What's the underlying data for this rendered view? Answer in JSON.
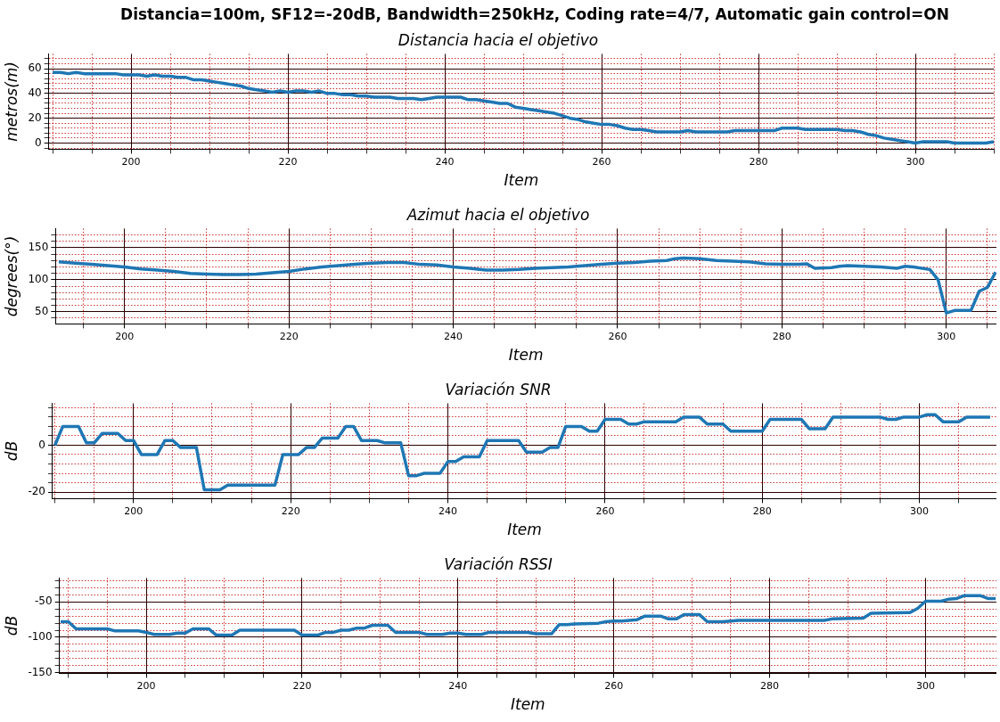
{
  "chart_data": [
    {
      "type": "line",
      "title": "Distancia=100m, SF12=-20dB, Bandwidth=250kHz, Coding rate=4/7, Automatic gain control=ON",
      "subtitle": "Distancia hacia el objetivo",
      "xlabel": "Item",
      "ylabel": "metros(m)",
      "xlim": [
        189.5,
        310
      ],
      "xticks": [
        {
          "value": 190,
          "label": null
        },
        {
          "value": 195,
          "label": null
        },
        200,
        {
          "value": 205,
          "label": null
        },
        {
          "value": 210,
          "label": null
        },
        {
          "value": 215,
          "label": null
        },
        220,
        {
          "value": 225,
          "label": null
        },
        {
          "value": 230,
          "label": null
        },
        {
          "value": 235,
          "label": null
        },
        240,
        {
          "value": 245,
          "label": null
        },
        {
          "value": 250,
          "label": null
        },
        {
          "value": 255,
          "label": null
        },
        260,
        {
          "value": 265,
          "label": null
        },
        {
          "value": 270,
          "label": null
        },
        {
          "value": 275,
          "label": null
        },
        280,
        {
          "value": 285,
          "label": null
        },
        {
          "value": 290,
          "label": null
        },
        {
          "value": 295,
          "label": null
        },
        300,
        {
          "value": 305,
          "label": null
        },
        {
          "value": 310,
          "label": null
        }
      ],
      "ylim": [
        -5,
        72
      ],
      "yticks": [
        {
          "value": -4,
          "label": null
        },
        0,
        {
          "value": 4,
          "label": null
        },
        {
          "value": 8,
          "label": null
        },
        {
          "value": 12,
          "label": null
        },
        {
          "value": 16,
          "label": null
        },
        20,
        {
          "value": 24,
          "label": null
        },
        {
          "value": 28,
          "label": null
        },
        {
          "value": 32,
          "label": null
        },
        {
          "value": 36,
          "label": null
        },
        40,
        {
          "value": 44,
          "label": null
        },
        {
          "value": 48,
          "label": null
        },
        {
          "value": 52,
          "label": null
        },
        {
          "value": 56,
          "label": null
        },
        60,
        {
          "value": 64,
          "label": null
        },
        {
          "value": 68,
          "label": null
        }
      ],
      "grid": true,
      "x": [
        190,
        191,
        192,
        193,
        194,
        195,
        196,
        197,
        198,
        199,
        200,
        201,
        202,
        203,
        204,
        205,
        206,
        207,
        208,
        209,
        210,
        211,
        212,
        213,
        214,
        215,
        216,
        217,
        218,
        219,
        220,
        221,
        222,
        223,
        224,
        225,
        226,
        227,
        228,
        229,
        230,
        231,
        232,
        233,
        234,
        235,
        236,
        237,
        238,
        239,
        240,
        241,
        242,
        243,
        244,
        245,
        246,
        247,
        248,
        249,
        250,
        251,
        252,
        253,
        254,
        255,
        256,
        257,
        258,
        259,
        260,
        261,
        262,
        263,
        264,
        265,
        266,
        267,
        268,
        269,
        270,
        271,
        272,
        273,
        274,
        275,
        276,
        277,
        278,
        279,
        280,
        281,
        282,
        283,
        284,
        285,
        286,
        287,
        288,
        289,
        290,
        291,
        292,
        293,
        294,
        295,
        296,
        297,
        298,
        299,
        300,
        301,
        302,
        303,
        304,
        305,
        306,
        307,
        308,
        309,
        310
      ],
      "series": [
        {
          "color": "#1f77b4",
          "values": [
            57,
            57,
            56,
            57,
            56,
            56,
            56,
            56,
            56,
            55,
            55,
            55,
            54,
            55,
            54,
            54,
            53,
            53,
            51,
            51,
            50,
            49,
            48,
            47,
            46,
            44,
            43,
            42,
            41,
            42,
            41,
            42,
            42,
            41,
            42,
            40,
            40,
            39,
            39,
            38,
            38,
            37,
            37,
            37,
            36,
            36,
            36,
            35,
            36,
            37,
            37,
            37,
            37,
            35,
            35,
            34,
            33,
            32,
            32,
            29,
            28,
            27,
            26,
            25,
            24,
            22,
            20,
            19,
            17,
            16,
            15,
            15,
            14,
            12,
            11,
            11,
            10,
            9,
            9,
            9,
            9,
            10,
            9,
            9,
            9,
            9,
            9,
            10,
            10,
            10,
            10,
            10,
            10,
            12,
            12,
            12,
            11,
            11,
            11,
            11,
            11,
            10,
            10,
            9,
            7,
            6,
            4,
            3,
            2,
            1,
            0,
            1,
            1,
            1,
            1,
            0,
            0,
            0,
            0,
            0,
            1
          ]
        }
      ]
    },
    {
      "type": "line",
      "title": "Azimut hacia el objetivo",
      "xlabel": "Item",
      "ylabel": "degrees(°)",
      "xlim": [
        191.6,
        306.1
      ],
      "xticks": [
        {
          "value": 195,
          "label": null
        },
        200,
        {
          "value": 205,
          "label": null
        },
        {
          "value": 210,
          "label": null
        },
        {
          "value": 215,
          "label": null
        },
        220,
        {
          "value": 225,
          "label": null
        },
        {
          "value": 230,
          "label": null
        },
        {
          "value": 235,
          "label": null
        },
        240,
        {
          "value": 245,
          "label": null
        },
        {
          "value": 250,
          "label": null
        },
        {
          "value": 255,
          "label": null
        },
        260,
        {
          "value": 265,
          "label": null
        },
        {
          "value": 270,
          "label": null
        },
        {
          "value": 275,
          "label": null
        },
        280,
        {
          "value": 285,
          "label": null
        },
        {
          "value": 290,
          "label": null
        },
        {
          "value": 295,
          "label": null
        },
        300,
        {
          "value": 305,
          "label": null
        }
      ],
      "ylim": [
        31,
        180
      ],
      "yticks": [
        {
          "value": 40,
          "label": null
        },
        50,
        {
          "value": 60,
          "label": null
        },
        {
          "value": 70,
          "label": null
        },
        {
          "value": 80,
          "label": null
        },
        {
          "value": 90,
          "label": null
        },
        100,
        {
          "value": 110,
          "label": null
        },
        {
          "value": 120,
          "label": null
        },
        {
          "value": 130,
          "label": null
        },
        {
          "value": 140,
          "label": null
        },
        150,
        {
          "value": 160,
          "label": null
        },
        {
          "value": 170,
          "label": null
        }
      ],
      "grid": true,
      "x": [
        192,
        194,
        196,
        198,
        200,
        202,
        204,
        206,
        208,
        210,
        212,
        214,
        216,
        218,
        220,
        222,
        224,
        226,
        228,
        230,
        232,
        234,
        236,
        238,
        240,
        242,
        244,
        246,
        248,
        250,
        252,
        254,
        256,
        258,
        260,
        262,
        264,
        266,
        267,
        268,
        270,
        272,
        274,
        276,
        278,
        280,
        282,
        283,
        284,
        286,
        287,
        288,
        290,
        292,
        294,
        295,
        296,
        298,
        299,
        300,
        301,
        302,
        303,
        304,
        305,
        306
      ],
      "series": [
        {
          "color": "#1f77b4",
          "values": [
            128,
            126,
            124,
            122,
            120,
            117,
            115,
            113,
            110,
            109,
            108,
            108,
            109,
            111,
            113,
            117,
            120,
            122,
            124,
            126,
            127,
            127,
            124,
            123,
            120,
            118,
            115,
            115,
            116,
            118,
            119,
            120,
            122,
            124,
            126,
            127,
            129,
            130,
            133,
            134,
            133,
            130,
            129,
            128,
            125,
            124,
            124,
            125,
            118,
            119,
            121,
            122,
            121,
            120,
            118,
            121,
            120,
            116,
            100,
            48,
            52,
            52,
            52,
            82,
            88,
            112
          ]
        }
      ]
    },
    {
      "type": "line",
      "title": "Variación SNR",
      "xlabel": "Item",
      "ylabel": "dB",
      "xlim": [
        189.7,
        309.8
      ],
      "xticks": [
        {
          "value": 190,
          "label": null
        },
        {
          "value": 195,
          "label": null
        },
        200,
        {
          "value": 205,
          "label": null
        },
        {
          "value": 210,
          "label": null
        },
        {
          "value": 215,
          "label": null
        },
        220,
        {
          "value": 225,
          "label": null
        },
        {
          "value": 230,
          "label": null
        },
        {
          "value": 235,
          "label": null
        },
        240,
        {
          "value": 245,
          "label": null
        },
        {
          "value": 250,
          "label": null
        },
        {
          "value": 255,
          "label": null
        },
        260,
        {
          "value": 265,
          "label": null
        },
        {
          "value": 270,
          "label": null
        },
        {
          "value": 275,
          "label": null
        },
        280,
        {
          "value": 285,
          "label": null
        },
        {
          "value": 290,
          "label": null
        },
        {
          "value": 295,
          "label": null
        },
        300,
        {
          "value": 305,
          "label": null
        }
      ],
      "ylim": [
        -22.8,
        17.9
      ],
      "yticks": [
        -20,
        {
          "value": -16,
          "label": null
        },
        {
          "value": -12,
          "label": null
        },
        {
          "value": -8,
          "label": null
        },
        {
          "value": -4,
          "label": null
        },
        0,
        {
          "value": 4,
          "label": null
        },
        {
          "value": 8,
          "label": null
        },
        {
          "value": 12,
          "label": null
        },
        {
          "value": 16,
          "label": null
        }
      ],
      "grid": true,
      "x": [
        190,
        191,
        192,
        193,
        194,
        195,
        196,
        197,
        198,
        199,
        200,
        201,
        202,
        203,
        204,
        205,
        206,
        207,
        208,
        209,
        210,
        211,
        212,
        213,
        214,
        215,
        216,
        217,
        218,
        219,
        220,
        221,
        222,
        223,
        224,
        225,
        226,
        227,
        228,
        229,
        230,
        231,
        232,
        233,
        234,
        235,
        236,
        237,
        238,
        239,
        240,
        241,
        242,
        243,
        244,
        245,
        246,
        247,
        248,
        249,
        250,
        251,
        252,
        253,
        254,
        255,
        256,
        257,
        258,
        259,
        260,
        261,
        262,
        263,
        264,
        265,
        266,
        267,
        268,
        269,
        270,
        271,
        272,
        273,
        274,
        275,
        276,
        277,
        278,
        279,
        280,
        281,
        282,
        283,
        284,
        285,
        286,
        287,
        288,
        289,
        290,
        291,
        292,
        293,
        294,
        295,
        296,
        297,
        298,
        299,
        300,
        301,
        302,
        303,
        304,
        305,
        306,
        307,
        308,
        309
      ],
      "series": [
        {
          "color": "#1f77b4",
          "values": [
            0,
            8,
            8,
            8,
            1,
            1,
            5,
            5,
            5,
            2,
            2,
            -4,
            -4,
            -4,
            2,
            2,
            -1,
            -1,
            -1,
            -19,
            -19,
            -19,
            -17,
            -17,
            -17,
            -17,
            -17,
            -17,
            -17,
            -4,
            -4,
            -4,
            -1,
            -1,
            3,
            3,
            3,
            8,
            8,
            2,
            2,
            2,
            1,
            1,
            1,
            -13,
            -13,
            -12,
            -12,
            -12,
            -7,
            -7,
            -5,
            -5,
            -5,
            2,
            2,
            2,
            2,
            2,
            -3,
            -3,
            -3,
            -1,
            -1,
            8,
            8,
            8,
            6,
            6,
            11,
            11,
            11,
            9,
            9,
            10,
            10,
            10,
            10,
            10,
            12,
            12,
            12,
            9,
            9,
            9,
            6,
            6,
            6,
            6,
            6,
            11,
            11,
            11,
            11,
            11,
            7,
            7,
            7,
            12,
            12,
            12,
            12,
            12,
            12,
            12,
            11,
            11,
            12,
            12,
            12,
            13,
            13,
            10,
            10,
            10,
            12,
            12,
            12,
            12
          ]
        }
      ]
    },
    {
      "type": "line",
      "title": "Variación RSSI",
      "xlabel": "Item",
      "ylabel": "dB",
      "xlim": [
        188.85,
        309.1
      ],
      "xticks": [
        {
          "value": 190,
          "label": null
        },
        {
          "value": 195,
          "label": null
        },
        200,
        {
          "value": 205,
          "label": null
        },
        {
          "value": 210,
          "label": null
        },
        {
          "value": 215,
          "label": null
        },
        220,
        {
          "value": 225,
          "label": null
        },
        {
          "value": 230,
          "label": null
        },
        {
          "value": 235,
          "label": null
        },
        240,
        {
          "value": 245,
          "label": null
        },
        {
          "value": 250,
          "label": null
        },
        {
          "value": 255,
          "label": null
        },
        260,
        {
          "value": 265,
          "label": null
        },
        {
          "value": 270,
          "label": null
        },
        {
          "value": 275,
          "label": null
        },
        280,
        {
          "value": 285,
          "label": null
        },
        {
          "value": 290,
          "label": null
        },
        {
          "value": 295,
          "label": null
        },
        300,
        {
          "value": 305,
          "label": null
        }
      ],
      "ylim": [
        -151,
        -16
      ],
      "yticks": [
        -150,
        {
          "value": -140,
          "label": null
        },
        {
          "value": -130,
          "label": null
        },
        {
          "value": -120,
          "label": null
        },
        {
          "value": -110,
          "label": null
        },
        -100,
        {
          "value": -90,
          "label": null
        },
        {
          "value": -80,
          "label": null
        },
        {
          "value": -70,
          "label": null
        },
        {
          "value": -60,
          "label": null
        },
        -50,
        {
          "value": -40,
          "label": null
        },
        {
          "value": -30,
          "label": null
        },
        {
          "value": -20,
          "label": null
        }
      ],
      "grid": true,
      "x": [
        189,
        190,
        191,
        195,
        196,
        199,
        200,
        201,
        203,
        204,
        205,
        206,
        208,
        209,
        211,
        212,
        219,
        220,
        222,
        223,
        224,
        225,
        226,
        227,
        228,
        229,
        231,
        232,
        235,
        236,
        238,
        239,
        240,
        241,
        243,
        244,
        249,
        250,
        252,
        253,
        254,
        255,
        258,
        259,
        260,
        261,
        262,
        263,
        264,
        266,
        267,
        268,
        269,
        271,
        272,
        274,
        275,
        276,
        287,
        288,
        292,
        293,
        298,
        299,
        300,
        302,
        303,
        304,
        305,
        307,
        308,
        309
      ],
      "series": [
        {
          "color": "#1f77b4",
          "values": [
            -78,
            -78,
            -88,
            -88,
            -91,
            -91,
            -93,
            -96,
            -96,
            -94,
            -94,
            -88,
            -88,
            -97,
            -97,
            -90,
            -90,
            -97,
            -97,
            -93,
            -93,
            -90,
            -90,
            -87,
            -87,
            -83,
            -83,
            -93,
            -93,
            -96,
            -96,
            -94,
            -94,
            -96,
            -96,
            -93,
            -93,
            -95,
            -95,
            -82,
            -82,
            -81,
            -80,
            -78,
            -77,
            -77,
            -76,
            -75,
            -70,
            -70,
            -74,
            -74,
            -68,
            -68,
            -78,
            -78,
            -77,
            -76,
            -76,
            -74,
            -73,
            -66,
            -65,
            -59,
            -49,
            -49,
            -46,
            -45,
            -41,
            -41,
            -45,
            -45
          ]
        }
      ]
    }
  ]
}
